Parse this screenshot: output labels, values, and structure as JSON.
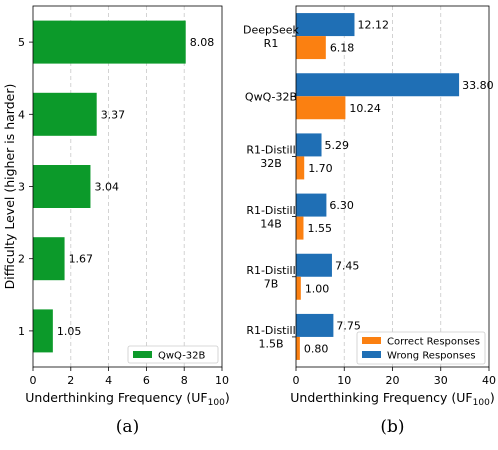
{
  "chart_data": [
    {
      "type": "bar",
      "orientation": "horizontal",
      "categories": [
        "1",
        "2",
        "3",
        "4",
        "5"
      ],
      "series": [
        {
          "name": "QwQ-32B",
          "values": [
            1.05,
            1.67,
            3.04,
            3.37,
            8.08
          ],
          "color": "#0c9a2a"
        }
      ],
      "data_labels": [
        "1.05",
        "1.67",
        "3.04",
        "3.37",
        "8.08"
      ],
      "xlabel": "Underthinking Frequency (UF",
      "xlabel_sub": "100",
      "xlabel_close": ")",
      "ylabel": "Difficulty Level (higher is harder)",
      "xlim": [
        0,
        10
      ],
      "xticks": [
        "0",
        "2",
        "4",
        "6",
        "8",
        "10"
      ],
      "xtick_values": [
        0,
        2,
        4,
        6,
        8,
        10
      ],
      "grid": "x-dashed",
      "legend": "bottom-right",
      "caption": "(a)"
    },
    {
      "type": "bar",
      "orientation": "horizontal",
      "categories": [
        [
          "DeepSeek",
          "R1"
        ],
        [
          "QwQ-32B"
        ],
        [
          "R1-Distill",
          "32B"
        ],
        [
          "R1-Distill",
          "14B"
        ],
        [
          "R1-Distill",
          "7B"
        ],
        [
          "R1-Distill",
          "1.5B"
        ]
      ],
      "series": [
        {
          "name": "Wrong Responses",
          "values": [
            12.12,
            33.8,
            5.29,
            6.3,
            7.45,
            7.75
          ],
          "color": "#1f6fb5",
          "labels": [
            "12.12",
            "33.80",
            "5.29",
            "6.30",
            "7.45",
            "7.75"
          ]
        },
        {
          "name": "Correct Responses",
          "values": [
            6.18,
            10.24,
            1.7,
            1.55,
            1.0,
            0.8
          ],
          "color": "#fb8011",
          "labels": [
            "6.18",
            "10.24",
            "1.70",
            "1.55",
            "1.00",
            "0.80"
          ]
        }
      ],
      "legend_order": [
        "Correct Responses",
        "Wrong Responses"
      ],
      "xlabel": "Underthinking Frequency (UF",
      "xlabel_sub": "100",
      "xlabel_close": ")",
      "xlim": [
        0,
        40
      ],
      "xticks": [
        "0",
        "10",
        "20",
        "30",
        "40"
      ],
      "xtick_values": [
        0,
        10,
        20,
        30,
        40
      ],
      "grid": "x-dashed",
      "legend": "bottom-right",
      "caption": "(b)"
    }
  ]
}
